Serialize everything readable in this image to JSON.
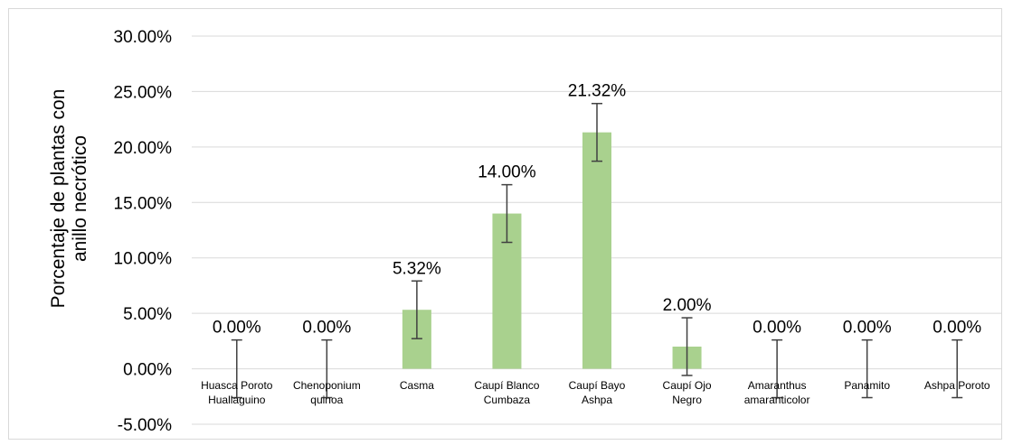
{
  "chart_data": {
    "type": "bar",
    "title": "",
    "xlabel": "",
    "ylabel_lines": [
      "Porcentaje de plantas con",
      "anillo necrótico"
    ],
    "categories": [
      [
        "Huasca Poroto",
        "Huallaguino"
      ],
      [
        "Chenoponium",
        "quinoa"
      ],
      [
        "Casma"
      ],
      [
        "Caupí Blanco",
        "Cumbaza"
      ],
      [
        "Caupí Bayo",
        "Ashpa"
      ],
      [
        "Caupí Ojo",
        "Negro"
      ],
      [
        "Amaranthus",
        "amaranticolor"
      ],
      [
        "Panamito"
      ],
      [
        "Ashpa Poroto"
      ]
    ],
    "values": [
      0.0,
      0.0,
      5.32,
      14.0,
      21.32,
      2.0,
      0.0,
      0.0,
      0.0
    ],
    "data_labels": [
      "0.00%",
      "0.00%",
      "5.32%",
      "14.00%",
      "21.32%",
      "2.00%",
      "0.00%",
      "0.00%",
      "0.00%"
    ],
    "error": [
      2.6,
      2.6,
      2.6,
      2.6,
      2.6,
      2.6,
      2.6,
      2.6,
      2.6
    ],
    "ylim": [
      -5,
      30
    ],
    "yticks": [
      -5,
      0,
      5,
      10,
      15,
      20,
      25,
      30
    ],
    "ytick_labels": [
      "-5.00%",
      "0.00%",
      "5.00%",
      "10.00%",
      "15.00%",
      "20.00%",
      "25.00%",
      "30.00%"
    ],
    "grid": true,
    "legend": "none",
    "colors": {
      "bar": "#a9d18e",
      "grid": "#d9d9d9",
      "error_bar": "#404040",
      "axis": "#d9d9d9"
    }
  }
}
